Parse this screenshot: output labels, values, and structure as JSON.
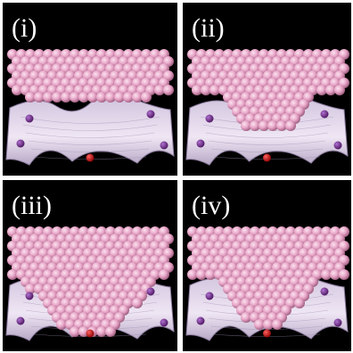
{
  "panels": [
    {
      "label": "(i)"
    },
    {
      "label": "(ii)"
    },
    {
      "label": "(iii)"
    },
    {
      "label": "(iv)"
    }
  ]
}
